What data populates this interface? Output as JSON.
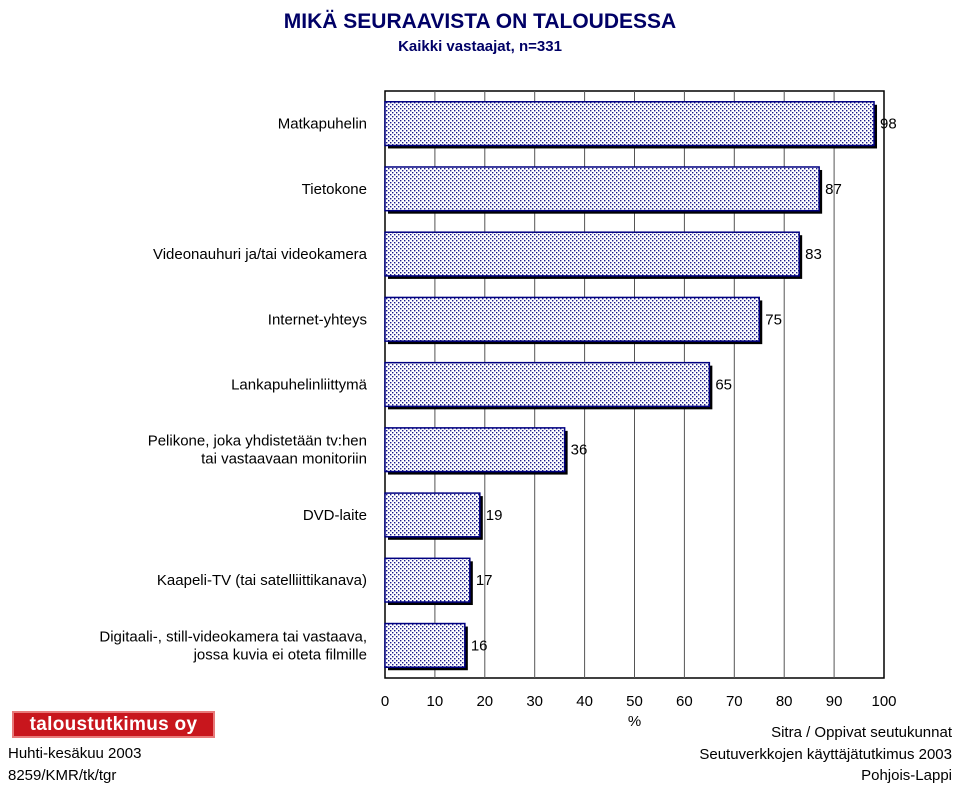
{
  "chart_data": {
    "type": "bar",
    "orientation": "horizontal",
    "title": "MIKÄ SEURAAVISTA ON TALOUDESSA",
    "subtitle": "Kaikki vastaajat, n=331",
    "categories": [
      [
        "Matkapuhelin"
      ],
      [
        "Tietokone"
      ],
      [
        "Videonauhuri ja/tai videokamera"
      ],
      [
        "Internet-yhteys"
      ],
      [
        "Lankapuhelinliittymä"
      ],
      [
        "Pelikone, joka yhdistetään tv:hen",
        "tai vastaavaan monitoriin"
      ],
      [
        "DVD-laite"
      ],
      [
        "Kaapeli-TV (tai satelliittikanava)"
      ],
      [
        "Digitaali-, still-videokamera tai vastaava,",
        "jossa kuvia ei oteta filmille"
      ]
    ],
    "values": [
      98,
      87,
      83,
      75,
      65,
      36,
      19,
      17,
      16
    ],
    "xlabel": "%",
    "xlim": [
      0,
      100
    ],
    "xticks": [
      "0",
      "10",
      "20",
      "30",
      "40",
      "50",
      "60",
      "70",
      "80",
      "90",
      "100"
    ],
    "grid": true,
    "bar_color": "#000080"
  },
  "footer": {
    "logo_text": "taloustutkimus oy",
    "date": "Huhti-kesäkuu 2003",
    "code": "8259/KMR/tk/tgr",
    "source_line1": "Sitra / Oppivat seutukunnat",
    "source_line2": "Seutuverkkojen käyttäjätutkimus 2003",
    "source_line3": "Pohjois-Lappi"
  }
}
